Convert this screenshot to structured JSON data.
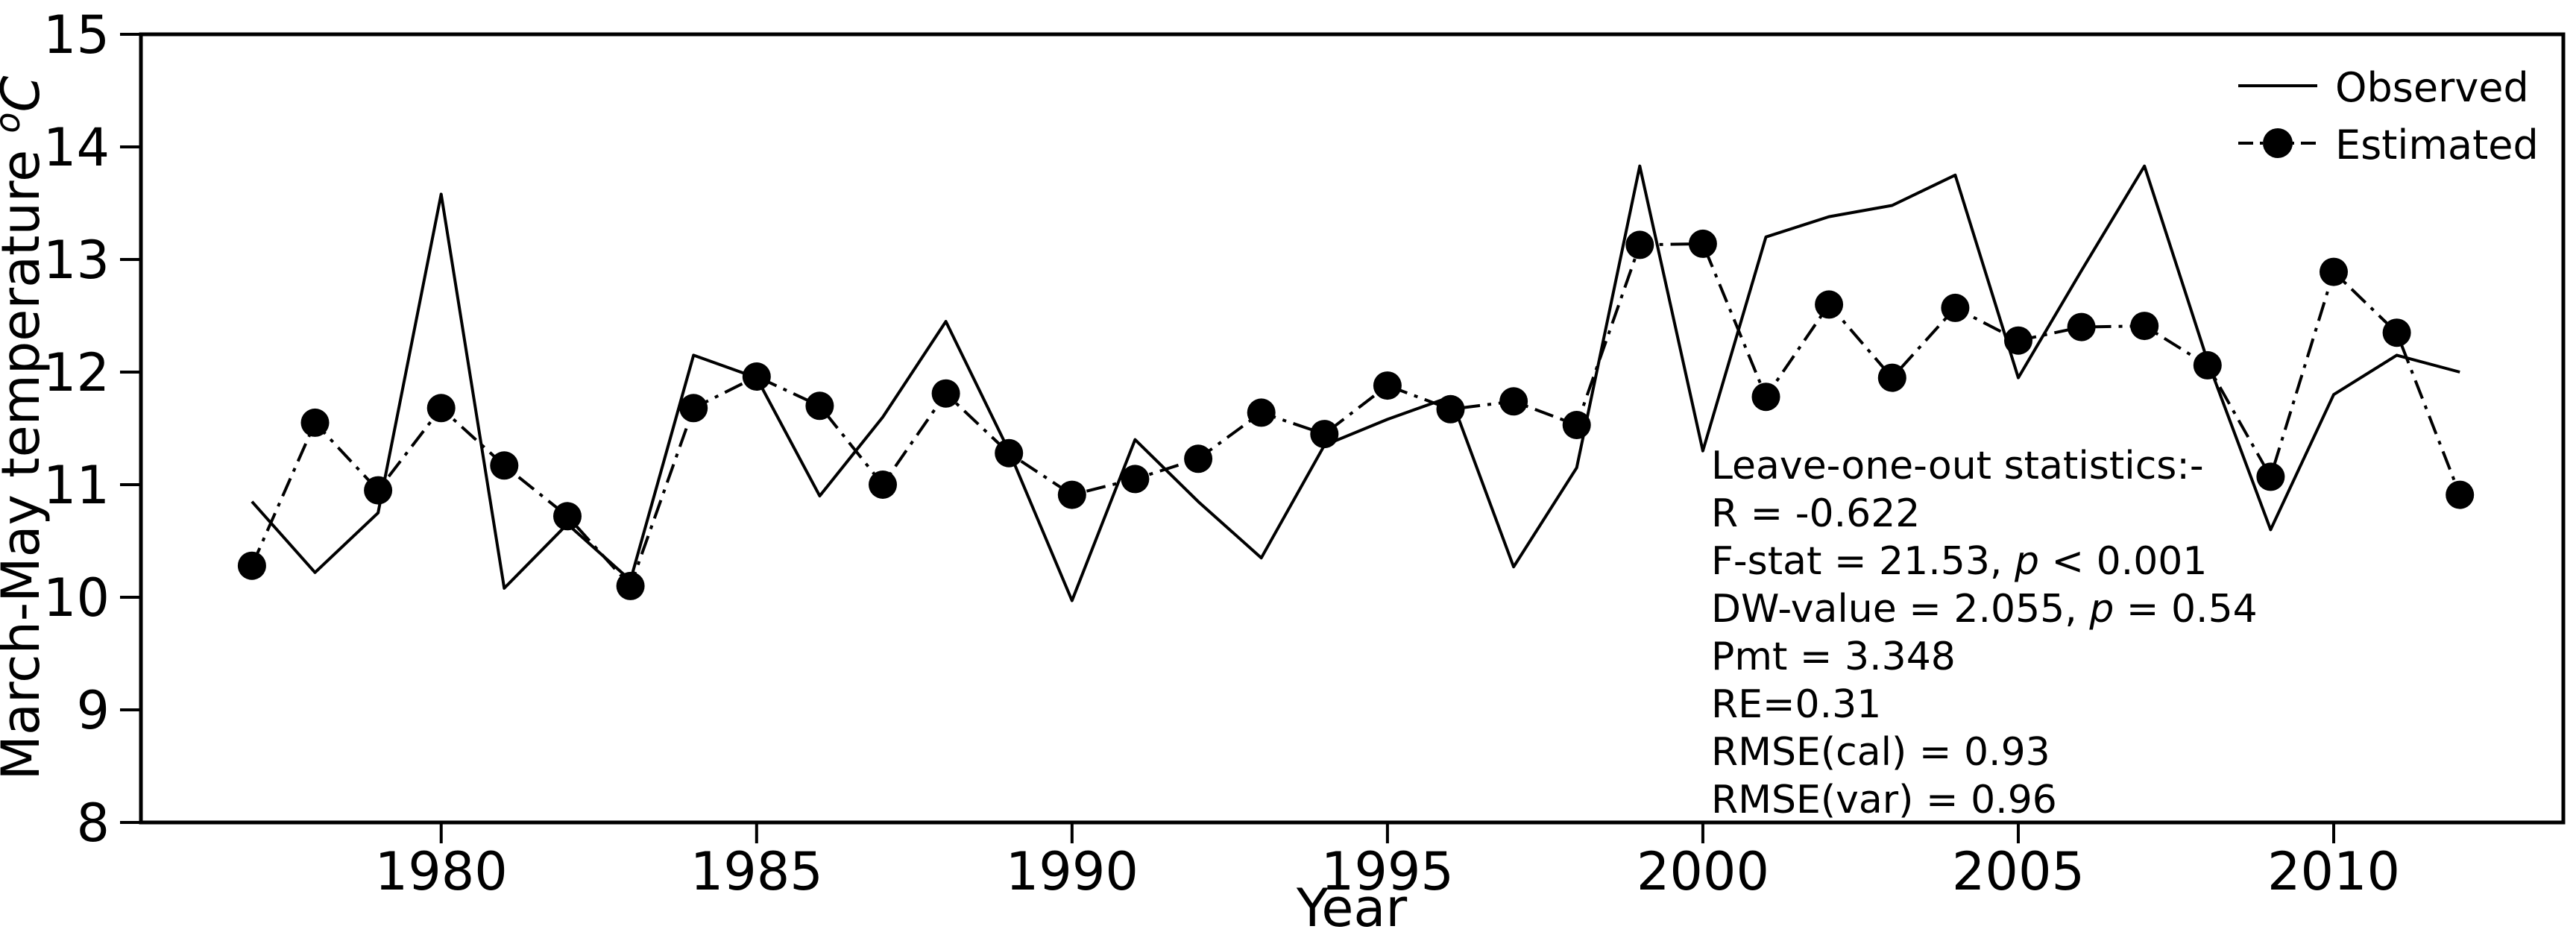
{
  "chart_data": {
    "type": "line",
    "title": "",
    "xlabel": "Year",
    "ylabel_prefix": "March-May temperature ",
    "ylabel_sup": "o",
    "ylabel_unit": "C",
    "xlim": [
      1975.24,
      2013.64
    ],
    "ylim": [
      8,
      15
    ],
    "x_ticks": [
      1980,
      1985,
      1990,
      1995,
      2000,
      2005,
      2010
    ],
    "y_ticks": [
      8,
      9,
      10,
      11,
      12,
      13,
      14,
      15
    ],
    "grid": false,
    "legend_position": "upper right",
    "x": [
      1977,
      1978,
      1979,
      1980,
      1981,
      1982,
      1983,
      1984,
      1985,
      1986,
      1987,
      1988,
      1989,
      1990,
      1991,
      1992,
      1993,
      1994,
      1995,
      1996,
      1997,
      1998,
      1999,
      2000,
      2001,
      2002,
      2003,
      2004,
      2005,
      2006,
      2007,
      2008,
      2009,
      2010,
      2011,
      2012
    ],
    "series": [
      {
        "name": "Observed",
        "style": "solid",
        "marker": "none",
        "color": "#000000",
        "values": [
          10.85,
          10.22,
          10.75,
          13.58,
          10.08,
          10.65,
          10.15,
          12.15,
          11.95,
          10.9,
          11.6,
          12.45,
          11.3,
          9.97,
          11.4,
          10.85,
          10.35,
          11.35,
          11.58,
          11.78,
          10.27,
          11.15,
          13.83,
          11.3,
          13.2,
          13.38,
          13.48,
          13.75,
          11.95,
          12.9,
          13.83,
          12.1,
          10.6,
          11.8,
          12.15,
          12.0
        ]
      },
      {
        "name": "Estimated",
        "style": "dashdot",
        "marker": "circle",
        "color": "#000000",
        "values": [
          10.28,
          11.55,
          10.95,
          11.68,
          11.17,
          10.72,
          10.1,
          11.68,
          11.96,
          11.7,
          11.0,
          11.81,
          11.28,
          10.91,
          11.05,
          11.23,
          11.64,
          11.45,
          11.88,
          11.67,
          11.74,
          11.53,
          13.13,
          13.14,
          11.78,
          12.6,
          11.95,
          12.57,
          12.28,
          12.4,
          12.41,
          12.06,
          11.07,
          12.89,
          12.35,
          10.91
        ]
      }
    ],
    "annotation": {
      "title": "Leave-one-out statistics:-",
      "r": "R = -0.622",
      "fstat_pre": "F-stat = 21.53, ",
      "fstat_p": "p",
      "fstat_post": " < 0.001",
      "dw_pre": "DW-value = 2.055, ",
      "dw_p": "p",
      "dw_post": " = 0.54",
      "pmt": "Pmt = 3.348",
      "re": "RE=0.31",
      "rmse_cal": "RMSE(cal) = 0.93",
      "rmse_var": "RMSE(var) = 0.96"
    }
  }
}
